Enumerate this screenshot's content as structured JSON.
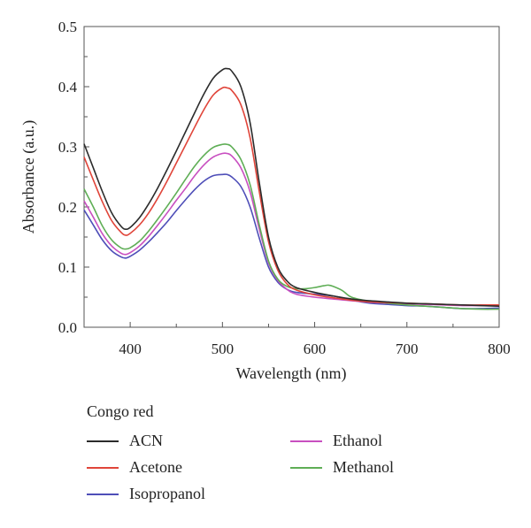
{
  "chart_data": {
    "type": "line",
    "title": "",
    "xlabel": "Wavelength (nm)",
    "ylabel": "Absorbance (a.u.)",
    "xlim": [
      350,
      800
    ],
    "ylim": [
      0.0,
      0.5
    ],
    "xticks": [
      "400",
      "500",
      "600",
      "700",
      "800"
    ],
    "yticks": [
      "0.0",
      "0.1",
      "0.2",
      "0.3",
      "0.4",
      "0.5"
    ],
    "grid": false,
    "legend_title": "Congo red",
    "legend_position": "below",
    "series": [
      {
        "name": "ACN",
        "color": "#2b2b2b",
        "x": [
          350,
          360,
          370,
          380,
          390,
          395,
          400,
          410,
          420,
          430,
          440,
          450,
          460,
          470,
          480,
          490,
          500,
          505,
          510,
          520,
          530,
          540,
          550,
          560,
          570,
          580,
          600,
          620,
          640,
          660,
          680,
          700,
          720,
          740,
          760,
          780,
          800
        ],
        "y": [
          0.305,
          0.265,
          0.225,
          0.19,
          0.168,
          0.163,
          0.166,
          0.182,
          0.205,
          0.232,
          0.262,
          0.293,
          0.325,
          0.357,
          0.388,
          0.414,
          0.428,
          0.43,
          0.426,
          0.4,
          0.34,
          0.24,
          0.15,
          0.1,
          0.077,
          0.066,
          0.058,
          0.052,
          0.047,
          0.044,
          0.042,
          0.04,
          0.039,
          0.038,
          0.037,
          0.036,
          0.035
        ]
      },
      {
        "name": "Acetone",
        "color": "#e0453a",
        "x": [
          350,
          360,
          370,
          380,
          390,
          395,
          400,
          410,
          420,
          430,
          440,
          450,
          460,
          470,
          480,
          490,
          500,
          505,
          510,
          520,
          530,
          540,
          550,
          560,
          570,
          580,
          600,
          620,
          640,
          660,
          680,
          700,
          720,
          740,
          760,
          780,
          800
        ],
        "y": [
          0.283,
          0.245,
          0.208,
          0.177,
          0.158,
          0.153,
          0.156,
          0.17,
          0.19,
          0.215,
          0.243,
          0.273,
          0.303,
          0.333,
          0.362,
          0.386,
          0.398,
          0.398,
          0.394,
          0.37,
          0.315,
          0.225,
          0.142,
          0.095,
          0.072,
          0.062,
          0.054,
          0.049,
          0.045,
          0.042,
          0.041,
          0.04,
          0.039,
          0.038,
          0.037,
          0.037,
          0.037
        ]
      },
      {
        "name": "Isopropanol",
        "color": "#4e4eb8",
        "x": [
          350,
          360,
          370,
          380,
          390,
          395,
          400,
          410,
          420,
          430,
          440,
          450,
          460,
          470,
          480,
          490,
          500,
          505,
          510,
          520,
          530,
          540,
          550,
          560,
          570,
          580,
          600,
          620,
          640,
          660,
          680,
          700,
          720,
          740,
          760,
          780,
          800
        ],
        "y": [
          0.195,
          0.17,
          0.145,
          0.127,
          0.117,
          0.115,
          0.118,
          0.128,
          0.142,
          0.158,
          0.175,
          0.194,
          0.212,
          0.229,
          0.243,
          0.252,
          0.254,
          0.254,
          0.25,
          0.234,
          0.2,
          0.148,
          0.1,
          0.075,
          0.063,
          0.058,
          0.055,
          0.052,
          0.045,
          0.04,
          0.038,
          0.036,
          0.035,
          0.033,
          0.031,
          0.031,
          0.032
        ]
      },
      {
        "name": "Ethanol",
        "color": "#c84fc0",
        "x": [
          350,
          360,
          370,
          380,
          390,
          395,
          400,
          410,
          420,
          430,
          440,
          450,
          460,
          470,
          480,
          490,
          500,
          505,
          510,
          520,
          530,
          540,
          550,
          560,
          570,
          580,
          600,
          620,
          640,
          660,
          680,
          700,
          720,
          740,
          760,
          780,
          800
        ],
        "y": [
          0.21,
          0.183,
          0.155,
          0.135,
          0.123,
          0.121,
          0.124,
          0.135,
          0.151,
          0.17,
          0.19,
          0.211,
          0.231,
          0.252,
          0.27,
          0.283,
          0.289,
          0.289,
          0.285,
          0.265,
          0.225,
          0.163,
          0.107,
          0.078,
          0.063,
          0.055,
          0.05,
          0.047,
          0.044,
          0.042,
          0.04,
          0.039,
          0.038,
          0.037,
          0.036,
          0.036,
          0.036
        ]
      },
      {
        "name": "Methanol",
        "color": "#5fae56",
        "x": [
          350,
          360,
          370,
          380,
          390,
          395,
          400,
          410,
          420,
          430,
          440,
          450,
          460,
          470,
          480,
          490,
          500,
          505,
          510,
          520,
          530,
          540,
          550,
          560,
          570,
          580,
          590,
          600,
          610,
          615,
          620,
          630,
          640,
          660,
          680,
          700,
          720,
          740,
          760,
          780,
          800
        ],
        "y": [
          0.23,
          0.2,
          0.168,
          0.145,
          0.132,
          0.13,
          0.132,
          0.143,
          0.16,
          0.18,
          0.201,
          0.223,
          0.246,
          0.268,
          0.286,
          0.299,
          0.304,
          0.304,
          0.3,
          0.279,
          0.237,
          0.17,
          0.11,
          0.08,
          0.068,
          0.064,
          0.064,
          0.066,
          0.069,
          0.07,
          0.068,
          0.061,
          0.05,
          0.043,
          0.04,
          0.037,
          0.035,
          0.033,
          0.031,
          0.03,
          0.03
        ]
      }
    ]
  },
  "legend": {
    "title": "Congo red",
    "items": [
      {
        "label": "ACN",
        "color": "#2b2b2b"
      },
      {
        "label": "Ethanol",
        "color": "#c84fc0"
      },
      {
        "label": "Acetone",
        "color": "#e0453a"
      },
      {
        "label": "Methanol",
        "color": "#5fae56"
      },
      {
        "label": "Isopropanol",
        "color": "#4e4eb8"
      }
    ]
  }
}
